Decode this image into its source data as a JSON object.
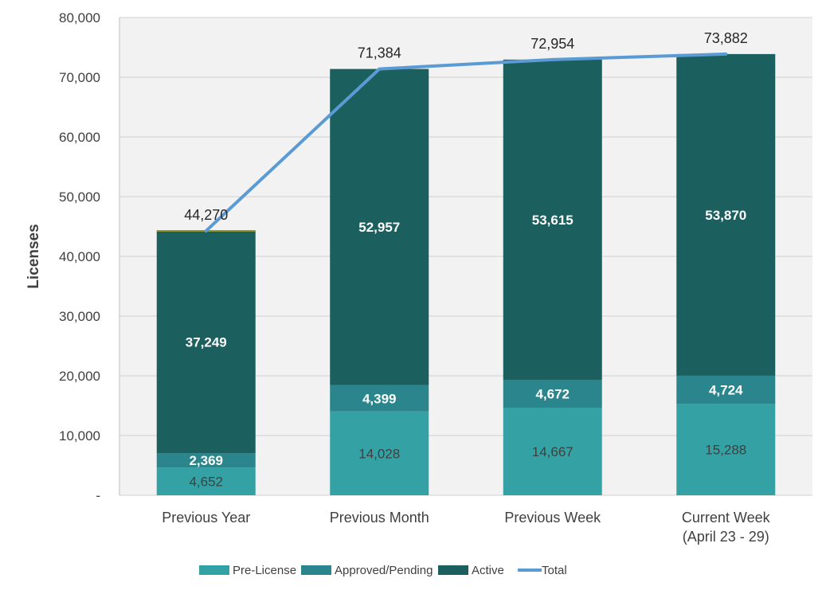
{
  "chart_data": {
    "type": "bar",
    "stacked": true,
    "categories": [
      "Previous Year",
      "Previous Month",
      "Previous Week",
      "Current Week\n(April 23 - 29)"
    ],
    "series": [
      {
        "name": "Pre-License",
        "values": [
          4652,
          14028,
          14667,
          15288
        ],
        "color": "#34A1A4"
      },
      {
        "name": "Approved/Pending",
        "values": [
          2369,
          4399,
          4672,
          4724
        ],
        "color": "#2A868C"
      },
      {
        "name": "Active",
        "values": [
          37249,
          52957,
          53615,
          53870
        ],
        "color": "#1B5F5F"
      }
    ],
    "line": {
      "name": "Total",
      "values": [
        44270,
        71384,
        72954,
        73882
      ],
      "color": "#5B9BD5"
    },
    "ylabel": "Licenses",
    "ylim": [
      0,
      80000
    ],
    "yticks": [
      "-",
      "10,000",
      "20,000",
      "30,000",
      "40,000",
      "50,000",
      "60,000",
      "70,000",
      "80,000"
    ],
    "grid": true,
    "legend": "bottom"
  }
}
